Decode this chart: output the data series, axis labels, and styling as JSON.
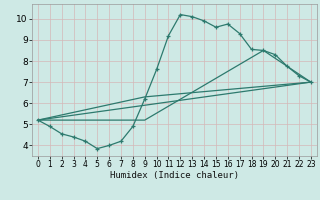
{
  "xlabel": "Humidex (Indice chaleur)",
  "bg_color": "#cee9e5",
  "line_color": "#2d7a6e",
  "grid_color": "#b8d8d4",
  "xlim": [
    -0.5,
    23.5
  ],
  "ylim": [
    3.5,
    10.7
  ],
  "xticks": [
    0,
    1,
    2,
    3,
    4,
    5,
    6,
    7,
    8,
    9,
    10,
    11,
    12,
    13,
    14,
    15,
    16,
    17,
    18,
    19,
    20,
    21,
    22,
    23
  ],
  "yticks": [
    4,
    5,
    6,
    7,
    8,
    9,
    10
  ],
  "line1_x": [
    0,
    1,
    2,
    3,
    4,
    5,
    6,
    7,
    8,
    9,
    10,
    11,
    12,
    13,
    14,
    15,
    16,
    17,
    18,
    19,
    20,
    21,
    22,
    23
  ],
  "line1_y": [
    5.2,
    4.9,
    4.55,
    4.4,
    4.2,
    3.85,
    4.0,
    4.2,
    4.9,
    6.2,
    7.6,
    9.2,
    10.2,
    10.1,
    9.9,
    9.6,
    9.75,
    9.3,
    8.55,
    8.5,
    8.3,
    7.75,
    7.3,
    7.0
  ],
  "line2_x": [
    0,
    23
  ],
  "line2_y": [
    5.2,
    7.0
  ],
  "line3_x": [
    0,
    9,
    19,
    23
  ],
  "line3_y": [
    5.2,
    5.2,
    8.5,
    7.0
  ],
  "line4_x": [
    0,
    9,
    23
  ],
  "line4_y": [
    5.2,
    6.3,
    7.0
  ]
}
